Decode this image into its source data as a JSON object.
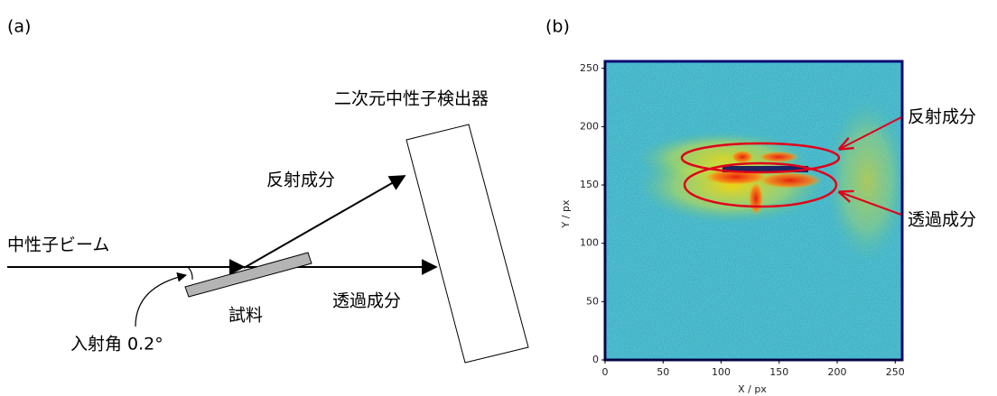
{
  "panel_labels": [
    "(a)",
    "(b)"
  ],
  "diagram": {
    "detector": "二次元中性子検出器",
    "reflected": "反射成分",
    "beam": "中性子ビーム",
    "sample": "試料",
    "transmitted": "透過成分",
    "incident_angle": "入射角 0.2°"
  },
  "chart_data": {
    "type": "heatmap",
    "xlabel": "X / px",
    "ylabel": "Y / px",
    "xlim": [
      0,
      256
    ],
    "ylim": [
      0,
      256
    ],
    "xticks": [
      0,
      50,
      100,
      150,
      200,
      250
    ],
    "yticks": [
      0,
      50,
      100,
      150,
      200,
      250
    ],
    "annotations": [
      "反射成分",
      "透過成分"
    ]
  }
}
